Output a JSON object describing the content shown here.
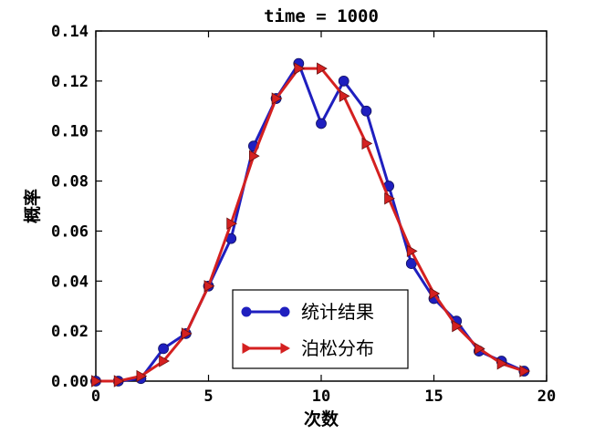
{
  "chart_data": {
    "type": "line",
    "title": "time = 1000",
    "xlabel": "次数",
    "ylabel": "概率",
    "xlim": [
      0,
      20
    ],
    "ylim": [
      0,
      0.14
    ],
    "xticks": [
      0,
      5,
      10,
      15,
      20
    ],
    "yticks": [
      0.0,
      0.02,
      0.04,
      0.06,
      0.08,
      0.1,
      0.12,
      0.14
    ],
    "xtick_labels": [
      "0",
      "5",
      "10",
      "15",
      "20"
    ],
    "ytick_labels": [
      "0.00",
      "0.02",
      "0.04",
      "0.06",
      "0.08",
      "0.10",
      "0.12",
      "0.14"
    ],
    "grid": false,
    "legend_position": "lower-center",
    "series": [
      {
        "name": "统计结果",
        "color": "#1f1fbf",
        "marker": "circle",
        "x": [
          0,
          1,
          2,
          3,
          4,
          5,
          6,
          7,
          8,
          9,
          10,
          11,
          12,
          13,
          14,
          15,
          16,
          17,
          18,
          19
        ],
        "y": [
          0.0,
          0.0,
          0.001,
          0.013,
          0.019,
          0.038,
          0.057,
          0.094,
          0.113,
          0.127,
          0.103,
          0.12,
          0.108,
          0.078,
          0.047,
          0.033,
          0.024,
          0.012,
          0.008,
          0.004
        ]
      },
      {
        "name": "泊松分布",
        "color": "#d42020",
        "marker": "triangle-right",
        "x": [
          0,
          1,
          2,
          3,
          4,
          5,
          6,
          7,
          8,
          9,
          10,
          11,
          12,
          13,
          14,
          15,
          16,
          17,
          18,
          19
        ],
        "y": [
          0.0,
          0.0,
          0.002,
          0.008,
          0.019,
          0.038,
          0.063,
          0.09,
          0.113,
          0.125,
          0.125,
          0.114,
          0.095,
          0.073,
          0.052,
          0.035,
          0.022,
          0.013,
          0.007,
          0.004
        ]
      }
    ]
  }
}
